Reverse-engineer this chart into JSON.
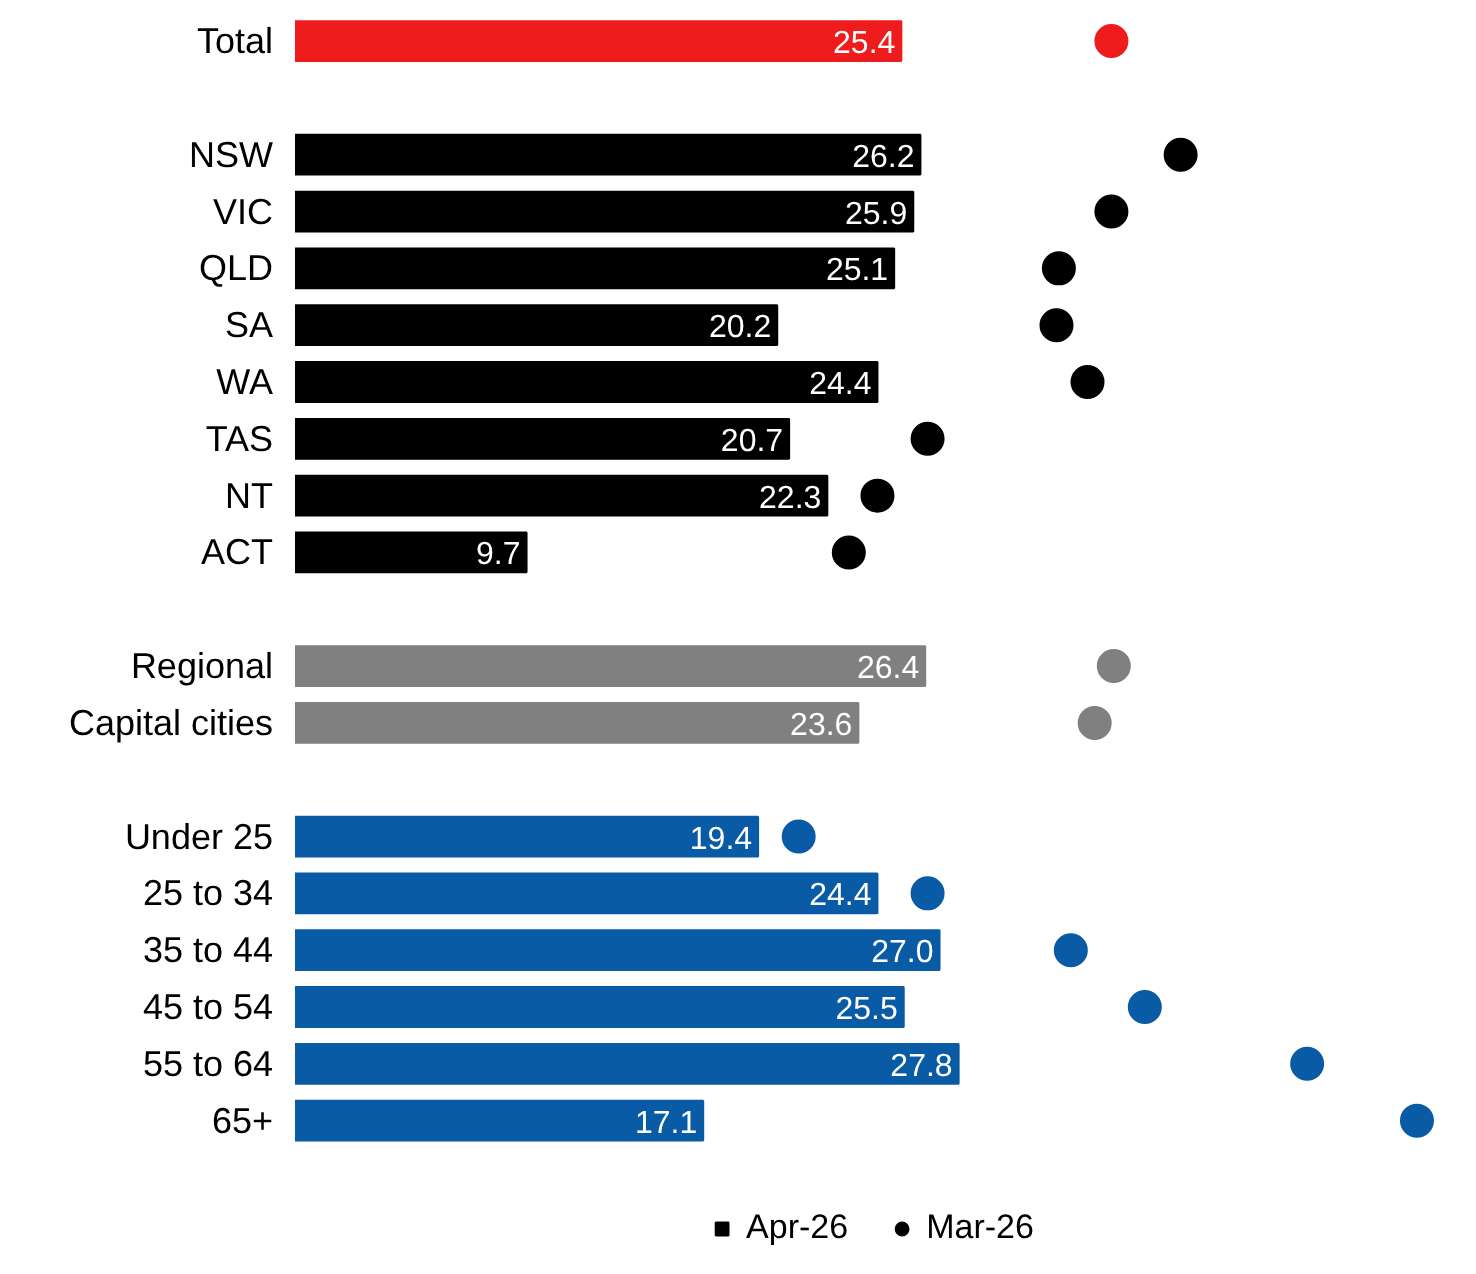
{
  "chart_data": {
    "type": "bar",
    "orientation": "horizontal",
    "categories": [
      "Total",
      null,
      "NSW",
      "VIC",
      "QLD",
      "SA",
      "WA",
      "TAS",
      "NT",
      "ACT",
      null,
      "Regional",
      "Capital cities",
      null,
      "Under 25",
      "25 to 34",
      "35 to 44",
      "45 to 54",
      "55 to 64",
      "65+"
    ],
    "series": [
      {
        "name": "Apr-26",
        "color": "#000000",
        "values": [
          25.4,
          null,
          26.2,
          25.9,
          25.1,
          20.2,
          24.4,
          20.7,
          22.3,
          9.7,
          null,
          26.4,
          23.6,
          null,
          19.4,
          24.4,
          27.0,
          25.5,
          27.8,
          17.1
        ],
        "value_labels": [
          "25.4",
          null,
          "26.2",
          "25.9",
          "25.1",
          "20.2",
          "24.4",
          "20.7",
          "22.3",
          "9.7",
          null,
          "26.4",
          "23.6",
          null,
          "19.4",
          "24.4",
          "27.0",
          "25.5",
          "27.8",
          "17.1"
        ],
        "colors": [
          "#ee1c1c",
          null,
          "#000000",
          "#000000",
          "#000000",
          "#000000",
          "#000000",
          "#000000",
          "#000000",
          "#000000",
          null,
          "#808080",
          "#808080",
          null,
          "#0a5ba5",
          "#0a5ba5",
          "#0a5ba5",
          "#0a5ba5",
          "#0a5ba5",
          "#0a5ba5"
        ]
      },
      {
        "name": "Mar-26",
        "type": "scatter",
        "color": "#000000",
        "values": [
          34.2,
          null,
          37.1,
          34.2,
          32.0,
          31.9,
          33.2,
          26.5,
          24.4,
          23.2,
          null,
          34.3,
          33.5,
          null,
          21.1,
          26.5,
          32.5,
          35.6,
          42.4,
          47.0
        ],
        "colors": [
          "#ee1c1c",
          null,
          "#000000",
          "#000000",
          "#000000",
          "#000000",
          "#000000",
          "#000000",
          "#000000",
          "#000000",
          null,
          "#808080",
          "#808080",
          null,
          "#0a5ba5",
          "#0a5ba5",
          "#0a5ba5",
          "#0a5ba5",
          "#0a5ba5",
          "#0a5ba5"
        ]
      }
    ],
    "tick_labels": "y",
    "grid": false,
    "legend": "bottom",
    "marker": "circle"
  }
}
